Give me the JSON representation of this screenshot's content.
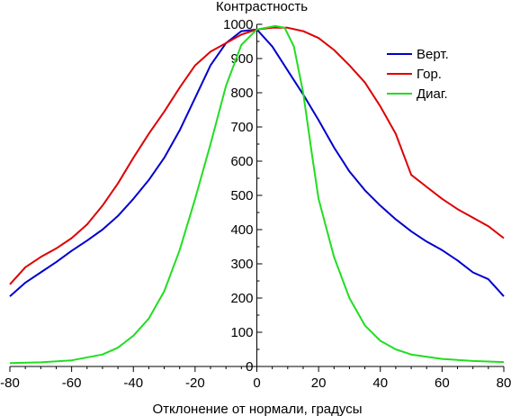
{
  "chart_data": {
    "type": "line",
    "title": "",
    "xlabel": "Отклонение от нормали, градусы",
    "ylabel": "Контрастность",
    "xlim": [
      -80,
      80
    ],
    "ylim": [
      0,
      1000
    ],
    "x_ticks": [
      -80,
      -60,
      -40,
      -20,
      0,
      20,
      40,
      60,
      80
    ],
    "y_ticks": [
      0,
      100,
      200,
      300,
      400,
      500,
      600,
      700,
      800,
      900,
      1000
    ],
    "grid": false,
    "legend_position": "top-right",
    "series": [
      {
        "name": "Верт.",
        "color": "#0000cc",
        "x": [
          -80,
          -75,
          -70,
          -65,
          -60,
          -55,
          -50,
          -45,
          -40,
          -35,
          -30,
          -25,
          -20,
          -15,
          -10,
          -5,
          0,
          5,
          10,
          15,
          20,
          25,
          30,
          35,
          40,
          45,
          50,
          55,
          60,
          65,
          70,
          75,
          80
        ],
        "y": [
          205,
          245,
          275,
          305,
          338,
          368,
          400,
          440,
          490,
          545,
          610,
          690,
          785,
          880,
          945,
          980,
          985,
          935,
          865,
          795,
          720,
          640,
          570,
          515,
          470,
          430,
          395,
          365,
          340,
          310,
          275,
          255,
          205
        ]
      },
      {
        "name": "Гор.",
        "color": "#dd0000",
        "x": [
          -80,
          -75,
          -70,
          -65,
          -60,
          -55,
          -50,
          -45,
          -40,
          -35,
          -30,
          -25,
          -20,
          -15,
          -10,
          -5,
          0,
          5,
          10,
          15,
          20,
          25,
          30,
          35,
          40,
          45,
          50,
          55,
          60,
          65,
          70,
          75,
          80
        ],
        "y": [
          240,
          290,
          320,
          345,
          375,
          415,
          470,
          535,
          610,
          680,
          745,
          815,
          880,
          920,
          945,
          970,
          985,
          990,
          990,
          980,
          960,
          925,
          880,
          830,
          760,
          680,
          560,
          525,
          490,
          460,
          435,
          410,
          375
        ]
      },
      {
        "name": "Диаг.",
        "color": "#22dd22",
        "x": [
          -80,
          -70,
          -60,
          -50,
          -45,
          -40,
          -35,
          -30,
          -25,
          -20,
          -15,
          -10,
          -5,
          0,
          3,
          6,
          9,
          12,
          15,
          18,
          20,
          25,
          30,
          35,
          40,
          45,
          50,
          60,
          70,
          80
        ],
        "y": [
          10,
          12,
          18,
          35,
          55,
          90,
          140,
          220,
          340,
          490,
          650,
          820,
          940,
          985,
          990,
          995,
          990,
          935,
          800,
          610,
          490,
          320,
          200,
          120,
          75,
          50,
          35,
          22,
          16,
          13
        ]
      }
    ]
  }
}
